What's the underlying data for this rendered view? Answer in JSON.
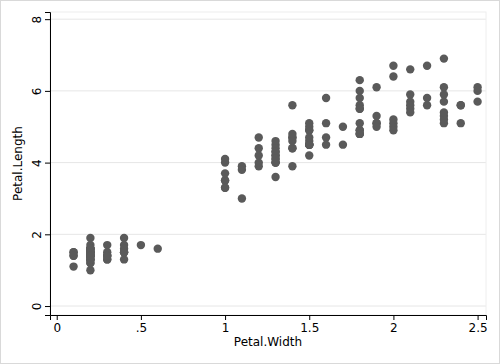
{
  "chart_data": {
    "type": "scatter",
    "x_label": "Petal.Width",
    "y_label": "Petal.Length",
    "color": "#5a5a5a",
    "marker": "circle",
    "grid": true,
    "xlim": [
      -0.04,
      2.55
    ],
    "ylim": [
      -0.25,
      8.2
    ],
    "xticks": [
      0,
      {
        "value": 0.5,
        "label": ".5"
      },
      1,
      1.5,
      2,
      2.5
    ],
    "yticks": [
      0,
      2,
      4,
      6,
      8
    ],
    "x": [
      0.2,
      0.2,
      0.2,
      0.2,
      0.2,
      0.4,
      0.3,
      0.2,
      0.2,
      0.1,
      0.2,
      0.2,
      0.1,
      0.1,
      0.2,
      0.4,
      0.4,
      0.3,
      0.3,
      0.3,
      0.2,
      0.4,
      0.2,
      0.5,
      0.2,
      0.2,
      0.4,
      0.2,
      0.2,
      0.2,
      0.2,
      0.4,
      0.1,
      0.2,
      0.2,
      0.2,
      0.2,
      0.1,
      0.2,
      0.2,
      0.3,
      0.3,
      0.2,
      0.6,
      0.4,
      0.3,
      0.2,
      0.2,
      0.2,
      0.2,
      1.4,
      1.5,
      1.5,
      1.3,
      1.5,
      1.3,
      1.6,
      1.0,
      1.3,
      1.4,
      1.0,
      1.5,
      1.0,
      1.4,
      1.3,
      1.4,
      1.5,
      1.0,
      1.5,
      1.1,
      1.8,
      1.3,
      1.5,
      1.2,
      1.3,
      1.4,
      1.4,
      1.7,
      1.5,
      1.0,
      1.1,
      1.0,
      1.2,
      1.6,
      1.5,
      1.6,
      1.5,
      1.3,
      1.3,
      1.3,
      1.2,
      1.4,
      1.2,
      1.0,
      1.3,
      1.2,
      1.3,
      1.3,
      1.1,
      1.3,
      2.5,
      1.9,
      2.1,
      1.8,
      2.2,
      2.1,
      1.7,
      1.8,
      1.8,
      2.5,
      2.0,
      1.9,
      2.1,
      2.0,
      2.4,
      2.3,
      1.8,
      2.2,
      2.3,
      1.5,
      2.3,
      2.0,
      2.0,
      1.8,
      2.1,
      1.8,
      1.8,
      1.8,
      2.1,
      1.6,
      1.9,
      2.0,
      2.2,
      1.5,
      1.4,
      2.3,
      2.4,
      1.8,
      1.8,
      2.1,
      2.4,
      2.3,
      1.9,
      2.3,
      2.5,
      2.3,
      1.9,
      2.0,
      2.3,
      1.8
    ],
    "values": [
      1.4,
      1.4,
      1.3,
      1.5,
      1.4,
      1.7,
      1.4,
      1.5,
      1.4,
      1.5,
      1.5,
      1.6,
      1.4,
      1.1,
      1.2,
      1.5,
      1.3,
      1.4,
      1.7,
      1.5,
      1.7,
      1.5,
      1.0,
      1.7,
      1.9,
      1.6,
      1.6,
      1.5,
      1.4,
      1.6,
      1.6,
      1.5,
      1.5,
      1.4,
      1.5,
      1.2,
      1.3,
      1.4,
      1.3,
      1.5,
      1.3,
      1.3,
      1.3,
      1.6,
      1.9,
      1.4,
      1.6,
      1.4,
      1.5,
      1.4,
      4.7,
      4.5,
      4.9,
      4.0,
      4.6,
      4.5,
      4.7,
      3.3,
      4.6,
      3.9,
      3.5,
      4.2,
      4.0,
      4.7,
      3.6,
      4.4,
      4.5,
      4.1,
      4.5,
      3.9,
      4.8,
      4.0,
      4.9,
      4.7,
      4.3,
      4.4,
      4.8,
      5.0,
      4.5,
      3.5,
      3.8,
      3.7,
      3.9,
      5.1,
      4.5,
      4.5,
      4.7,
      4.4,
      4.1,
      4.0,
      4.4,
      4.6,
      4.0,
      3.3,
      4.2,
      4.2,
      4.2,
      4.3,
      3.0,
      4.1,
      6.0,
      5.1,
      5.9,
      5.6,
      5.8,
      6.6,
      4.5,
      6.3,
      5.8,
      6.1,
      5.1,
      5.3,
      5.5,
      5.0,
      5.1,
      5.3,
      5.5,
      6.7,
      6.9,
      5.0,
      5.7,
      4.9,
      6.7,
      4.9,
      5.7,
      6.0,
      4.8,
      4.9,
      5.6,
      5.8,
      6.1,
      6.4,
      5.6,
      5.1,
      5.6,
      6.1,
      5.6,
      5.5,
      4.8,
      5.4,
      5.6,
      5.1,
      5.1,
      5.9,
      5.7,
      5.2,
      5.0,
      5.2,
      5.4,
      5.1
    ]
  }
}
